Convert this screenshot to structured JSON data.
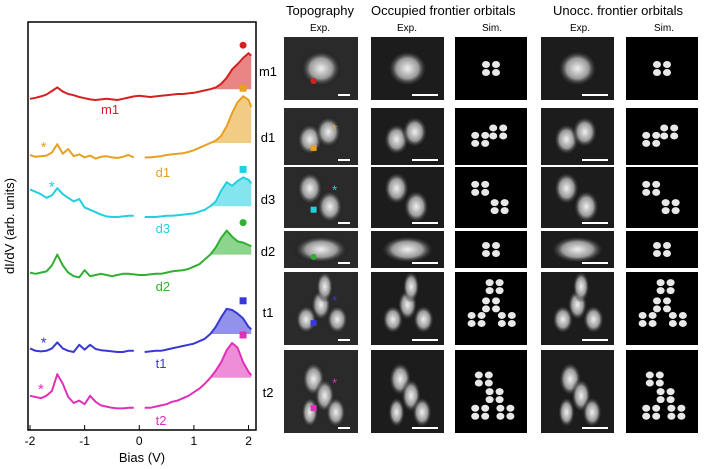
{
  "chart_data": {
    "type": "line",
    "xlabel": "Bias (V)",
    "ylabel": "dI/dV (arb. units)",
    "xlim": [
      -2,
      2.1
    ],
    "x_ticks": [
      "-2",
      "-1",
      "0",
      "1",
      "2"
    ],
    "x": [
      -2.0,
      -1.9,
      -1.8,
      -1.7,
      -1.6,
      -1.5,
      -1.4,
      -1.3,
      -1.2,
      -1.1,
      -1.0,
      -0.9,
      -0.8,
      -0.7,
      -0.6,
      -0.5,
      -0.4,
      -0.3,
      -0.2,
      -0.1,
      0.0,
      0.1,
      0.2,
      0.3,
      0.4,
      0.5,
      0.6,
      0.7,
      0.8,
      0.9,
      1.0,
      1.1,
      1.2,
      1.3,
      1.4,
      1.5,
      1.6,
      1.7,
      1.8,
      1.9,
      2.0,
      2.05
    ],
    "series": [
      {
        "name": "m1",
        "color": "#d62020",
        "marker": "circle",
        "label_x": -0.7,
        "values": [
          0.1,
          0.18,
          0.3,
          0.45,
          0.75,
          1.05,
          0.7,
          0.5,
          0.4,
          0.25,
          0.15,
          0.05,
          0.0,
          0.05,
          0.1,
          0.05,
          0.0,
          0.1,
          0.2,
          0.3,
          0.35,
          0.3,
          0.25,
          0.3,
          0.35,
          0.4,
          0.45,
          0.5,
          0.5,
          0.55,
          0.6,
          0.7,
          0.8,
          0.9,
          1.05,
          1.35,
          1.85,
          2.55,
          3.0,
          3.5,
          3.9,
          3.7
        ]
      },
      {
        "name": "d1",
        "color": "#e8a020",
        "marker": "square",
        "marker_x": -1.75,
        "label_x": 0.3,
        "values": [
          1.0,
          0.85,
          0.9,
          0.95,
          1.2,
          1.9,
          1.1,
          1.5,
          0.9,
          1.05,
          0.8,
          0.95,
          0.7,
          0.85,
          0.9,
          0.8,
          0.75,
          0.85,
          1.0,
          0.8,
          null,
          0.8,
          0.8,
          0.85,
          0.9,
          1.0,
          1.05,
          1.1,
          1.15,
          1.25,
          1.4,
          1.6,
          1.8,
          2.0,
          2.2,
          2.6,
          3.4,
          4.5,
          5.4,
          5.9,
          5.6,
          5.0
        ]
      },
      {
        "name": "d3",
        "color": "#20d0e0",
        "marker": "square",
        "marker_x": -1.6,
        "label_x": 0.3,
        "values": [
          2.8,
          2.6,
          2.4,
          2.1,
          2.3,
          2.9,
          2.4,
          2.1,
          1.8,
          2.0,
          1.3,
          1.1,
          0.9,
          0.7,
          0.55,
          0.5,
          0.5,
          0.55,
          0.6,
          0.6,
          null,
          0.5,
          0.5,
          0.5,
          0.55,
          0.6,
          0.6,
          0.65,
          0.7,
          0.75,
          0.8,
          0.95,
          1.1,
          1.4,
          1.8,
          2.7,
          3.4,
          3.1,
          3.5,
          3.8,
          3.6,
          3.3
        ]
      },
      {
        "name": "d2",
        "color": "#30b030",
        "marker": "circle",
        "label_x": 0.3,
        "values": [
          0.7,
          0.6,
          0.7,
          0.8,
          1.3,
          2.2,
          1.3,
          0.7,
          0.4,
          0.3,
          0.9,
          0.4,
          0.5,
          0.6,
          0.5,
          0.4,
          0.5,
          0.6,
          0.6,
          0.55,
          0.5,
          0.5,
          0.55,
          0.6,
          0.6,
          0.7,
          0.8,
          0.85,
          0.9,
          1.0,
          1.2,
          1.4,
          1.8,
          2.2,
          2.8,
          3.6,
          4.2,
          3.7,
          3.3,
          3.2,
          3.0,
          2.9
        ]
      },
      {
        "name": "t1",
        "color": "#3838d8",
        "marker": "square",
        "marker_x": -1.75,
        "label_x": 0.3,
        "values": [
          0.8,
          0.6,
          0.55,
          0.6,
          0.8,
          1.3,
          0.8,
          0.6,
          0.5,
          1.1,
          0.7,
          1.1,
          0.75,
          0.65,
          0.6,
          0.55,
          0.5,
          0.5,
          0.6,
          0.6,
          null,
          0.5,
          0.55,
          0.6,
          0.6,
          0.7,
          0.8,
          0.9,
          1.0,
          1.1,
          1.2,
          1.4,
          1.6,
          2.0,
          2.6,
          3.4,
          4.1,
          4.0,
          3.7,
          3.3,
          2.6,
          2.4
        ]
      },
      {
        "name": "t2",
        "color": "#e030b8",
        "marker": "square",
        "marker_x": -1.8,
        "label_x": 0.3,
        "values": [
          1.6,
          1.5,
          1.4,
          1.6,
          2.0,
          3.4,
          2.6,
          1.5,
          1.0,
          1.2,
          0.9,
          1.6,
          1.1,
          0.8,
          0.7,
          0.6,
          0.55,
          0.55,
          0.6,
          0.6,
          null,
          0.6,
          0.6,
          0.7,
          0.8,
          0.9,
          1.1,
          1.2,
          1.4,
          1.6,
          1.9,
          2.2,
          2.6,
          3.1,
          3.7,
          4.4,
          5.4,
          6.0,
          5.6,
          4.4,
          3.6,
          3.3
        ]
      }
    ]
  },
  "headers": {
    "topography": "Topography",
    "occupied": "Occupied frontier orbitals",
    "unoccupied": "Unocc. frontier orbitals",
    "exp": "Exp.",
    "sim": "Sim."
  },
  "rows": [
    "m1",
    "d1",
    "d3",
    "d2",
    "t1",
    "t2"
  ],
  "asterisk": "*"
}
